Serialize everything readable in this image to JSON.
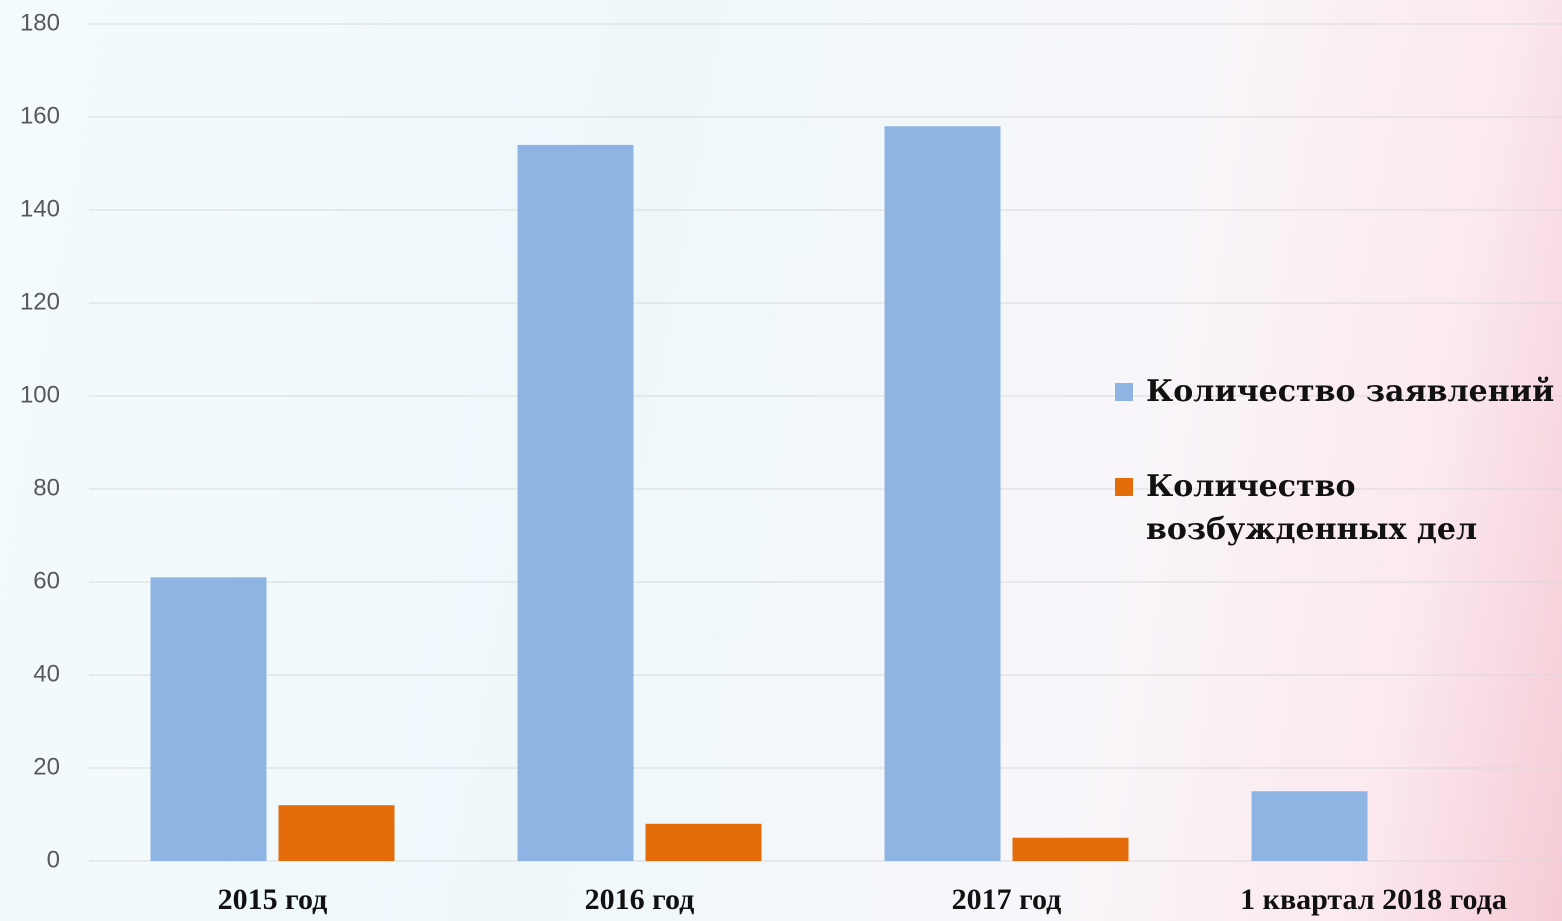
{
  "chart_data": {
    "type": "bar",
    "categories": [
      "2015 год",
      "2016 год",
      "2017 год",
      "1 квартал 2018 года"
    ],
    "series": [
      {
        "name": "Количество заявлений",
        "color": "#8eb4e3",
        "values": [
          61,
          154,
          158,
          15
        ]
      },
      {
        "name": "Количество возбужденных дел",
        "color": "#e46c0a",
        "values": [
          12,
          8,
          5,
          0
        ]
      }
    ],
    "ylim": [
      0,
      180
    ],
    "yticks": [
      0,
      20,
      40,
      60,
      80,
      100,
      120,
      140,
      160,
      180
    ],
    "grid": true,
    "legend": "right"
  }
}
